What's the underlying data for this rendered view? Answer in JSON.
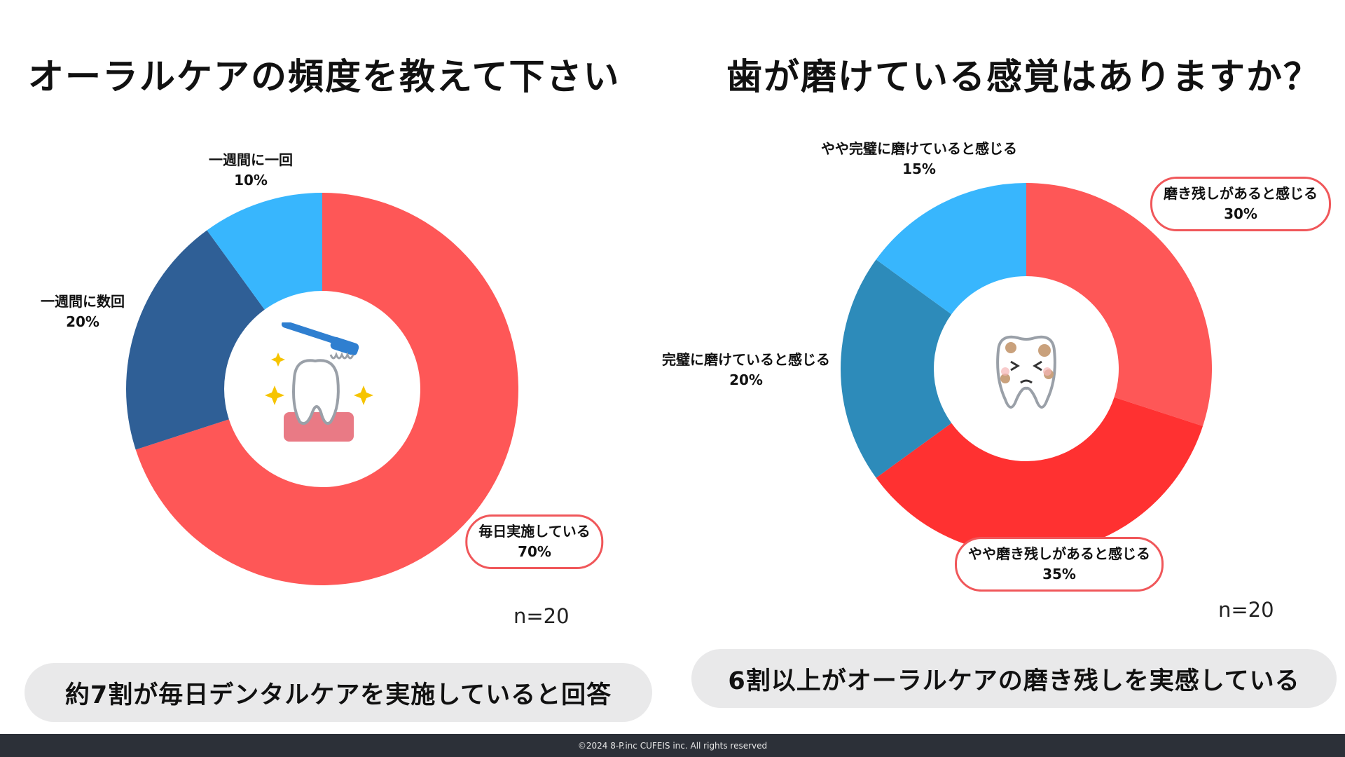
{
  "chart_data": [
    {
      "type": "pie",
      "title": "オーラルケアの頻度を教えて下さい",
      "n_label": "n=20",
      "summary": "約7割が毎日デンタルケアを実施していると回答",
      "slices": [
        {
          "name": "毎日実施している",
          "value": 70,
          "label": "70%",
          "color": "#fe5757",
          "highlight": true
        },
        {
          "name": "一週間に数回",
          "value": 20,
          "label": "20%",
          "color": "#2f5f96",
          "highlight": false
        },
        {
          "name": "一週間に一回",
          "value": 10,
          "label": "10%",
          "color": "#38b6fd",
          "highlight": false
        }
      ]
    },
    {
      "type": "pie",
      "title": "歯が磨けている感覚はありますか？",
      "n_label": "n=20",
      "summary": "6割以上がオーラルケアの磨き残しを実感している",
      "slices": [
        {
          "name": "磨き残しがあると感じる",
          "value": 30,
          "label": "30%",
          "color": "#fe5757",
          "highlight": true
        },
        {
          "name": "やや磨き残しがあると感じる",
          "value": 35,
          "label": "35%",
          "color": "#ff3131",
          "highlight": true
        },
        {
          "name": "完璧に磨けていると感じる",
          "value": 20,
          "label": "20%",
          "color": "#2d8bba",
          "highlight": false
        },
        {
          "name": "やや完璧に磨けていると感じる",
          "value": 15,
          "label": "15%",
          "color": "#38b6fd",
          "highlight": false
        }
      ]
    }
  ],
  "footer": "©2024 8-P.inc CUFEIS inc. All rights reserved",
  "icons": {
    "left_center": "toothbrush-tooth-icon",
    "right_center": "dirty-tooth-icon"
  }
}
